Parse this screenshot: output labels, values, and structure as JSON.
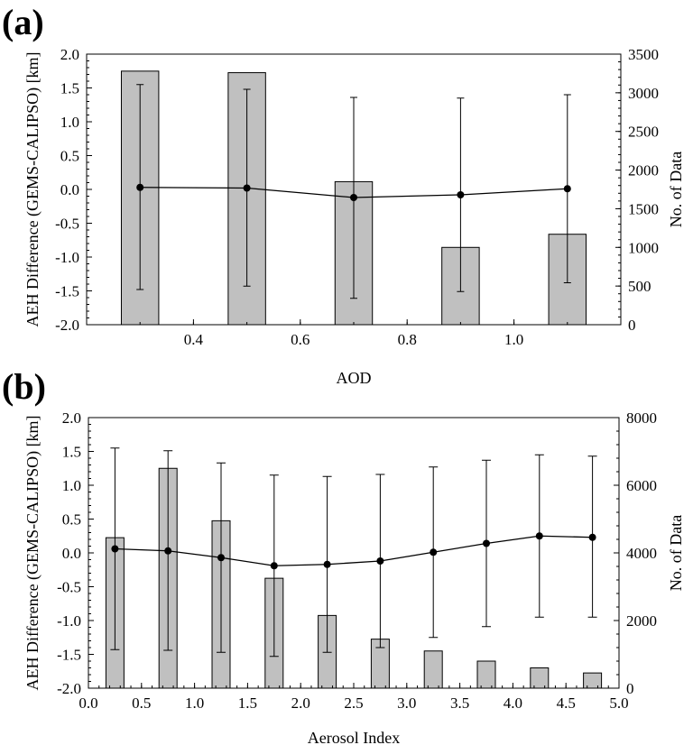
{
  "chart_data": [
    {
      "type": "bar",
      "panel_label": "(a)",
      "xlabel": "AOD",
      "ylabel_left": "AEH Difference (GEMS-CALIPSO) [km]",
      "ylabel_right": "No. of Data",
      "xlim": [
        0.2,
        1.2
      ],
      "ylim_left": [
        -2.0,
        2.0
      ],
      "ylim_right": [
        0,
        3500
      ],
      "x_ticks": [
        0.4,
        0.6,
        0.8,
        1.0
      ],
      "x_tick_labels": [
        "0.4",
        "0.6",
        "0.8",
        "1.0"
      ],
      "y_left_ticks": [
        -2.0,
        -1.5,
        -1.0,
        -0.5,
        0.0,
        0.5,
        1.0,
        1.5,
        2.0
      ],
      "y_left_tick_labels": [
        "-2.0",
        "-1.5",
        "-1.0",
        "-0.5",
        "0.0",
        "0.5",
        "1.0",
        "1.5",
        "2.0"
      ],
      "y_right_ticks": [
        0,
        500,
        1000,
        1500,
        2000,
        2500,
        3000,
        3500
      ],
      "y_right_tick_labels": [
        "0",
        "500",
        "1000",
        "1500",
        "2000",
        "2500",
        "3000",
        "3500"
      ],
      "bar_width": 0.07,
      "bars": {
        "x": [
          0.3,
          0.5,
          0.7,
          0.9,
          1.1
        ],
        "counts": [
          3280,
          3260,
          1850,
          1000,
          1170
        ]
      },
      "line": {
        "x": [
          0.3,
          0.5,
          0.7,
          0.9,
          1.1
        ],
        "mean": [
          0.03,
          0.02,
          -0.12,
          -0.08,
          0.01
        ],
        "upper": [
          1.55,
          1.48,
          1.36,
          1.35,
          1.4
        ],
        "lower": [
          -1.48,
          -1.43,
          -1.61,
          -1.51,
          -1.38
        ]
      },
      "grid": false,
      "colors": {
        "bar_fill": "#c0c0c0",
        "line": "#000000"
      }
    },
    {
      "type": "bar",
      "panel_label": "(b)",
      "xlabel": "Aerosol Index",
      "ylabel_left": "AEH Difference (GEMS-CALIPSO) [km]",
      "ylabel_right": "No. of Data",
      "xlim": [
        0.0,
        5.0
      ],
      "ylim_left": [
        -2.0,
        2.0
      ],
      "ylim_right": [
        0,
        8000
      ],
      "x_ticks": [
        0.0,
        0.5,
        1.0,
        1.5,
        2.0,
        2.5,
        3.0,
        3.5,
        4.0,
        4.5,
        5.0
      ],
      "x_tick_labels": [
        "0.0",
        "0.5",
        "1.0",
        "1.5",
        "2.0",
        "2.5",
        "3.0",
        "3.5",
        "4.0",
        "4.5",
        "5.0"
      ],
      "y_left_ticks": [
        -2.0,
        -1.5,
        -1.0,
        -0.5,
        0.0,
        0.5,
        1.0,
        1.5,
        2.0
      ],
      "y_left_tick_labels": [
        "-2.0",
        "-1.5",
        "-1.0",
        "-0.5",
        "0.0",
        "0.5",
        "1.0",
        "1.5",
        "2.0"
      ],
      "y_right_ticks": [
        0,
        2000,
        4000,
        6000,
        8000
      ],
      "y_right_tick_labels": [
        "0",
        "2000",
        "4000",
        "6000",
        "8000"
      ],
      "bar_width": 0.17,
      "bars": {
        "x": [
          0.25,
          0.75,
          1.25,
          1.75,
          2.25,
          2.75,
          3.25,
          3.75,
          4.25,
          4.75
        ],
        "counts": [
          4450,
          6500,
          4950,
          3250,
          2150,
          1450,
          1100,
          800,
          600,
          450
        ]
      },
      "line": {
        "x": [
          0.25,
          0.75,
          1.25,
          1.75,
          2.25,
          2.75,
          3.25,
          3.75,
          4.25,
          4.75
        ],
        "mean": [
          0.06,
          0.03,
          -0.07,
          -0.19,
          -0.17,
          -0.12,
          0.01,
          0.14,
          0.25,
          0.23
        ],
        "upper": [
          1.55,
          1.51,
          1.33,
          1.15,
          1.13,
          1.16,
          1.27,
          1.37,
          1.45,
          1.43
        ],
        "lower": [
          -1.43,
          -1.44,
          -1.47,
          -1.53,
          -1.47,
          -1.4,
          -1.25,
          -1.09,
          -0.95,
          -0.95
        ]
      },
      "grid": false,
      "colors": {
        "bar_fill": "#c0c0c0",
        "line": "#000000"
      }
    }
  ]
}
